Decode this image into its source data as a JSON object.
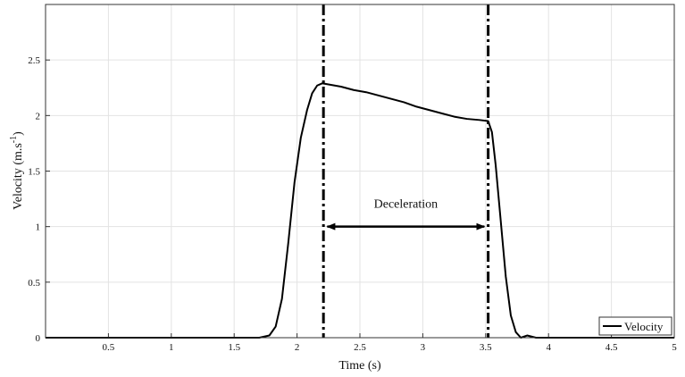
{
  "chart_data": {
    "type": "line",
    "xlabel": "Time (s)",
    "ylabel_main": "Velocity (m.s",
    "ylabel_sup": "-1",
    "ylabel_tail": ")",
    "xlim": [
      0,
      5
    ],
    "ylim": [
      0,
      3
    ],
    "x_ticks": [
      0.5,
      1,
      1.5,
      2,
      2.5,
      3,
      3.5,
      4,
      4.5,
      5
    ],
    "x_tick_labels": [
      "0.5",
      "1",
      "1.5",
      "2",
      "2.5",
      "3",
      "3.5",
      "4",
      "4.5",
      "5"
    ],
    "y_ticks": [
      0,
      0.5,
      1,
      1.5,
      2,
      2.5
    ],
    "y_tick_labels": [
      "0",
      "0.5",
      "1",
      "1.5",
      "2",
      "2.5"
    ],
    "grid": true,
    "legend": {
      "position": "bottom-right",
      "entries": [
        "Velocity"
      ]
    },
    "series": [
      {
        "name": "Velocity",
        "color": "#000000",
        "x": [
          0,
          0.5,
          1.0,
          1.5,
          1.7,
          1.78,
          1.83,
          1.88,
          1.93,
          1.98,
          2.03,
          2.08,
          2.12,
          2.16,
          2.2,
          2.25,
          2.35,
          2.45,
          2.55,
          2.65,
          2.75,
          2.85,
          2.95,
          3.05,
          3.15,
          3.25,
          3.35,
          3.45,
          3.52,
          3.55,
          3.58,
          3.62,
          3.66,
          3.7,
          3.74,
          3.78,
          3.83,
          3.9,
          4.0,
          4.5,
          5.0
        ],
        "y": [
          0,
          0,
          0,
          0,
          0.0,
          0.02,
          0.1,
          0.35,
          0.85,
          1.4,
          1.8,
          2.05,
          2.2,
          2.27,
          2.29,
          2.28,
          2.26,
          2.23,
          2.21,
          2.18,
          2.15,
          2.12,
          2.08,
          2.05,
          2.02,
          1.99,
          1.97,
          1.96,
          1.95,
          1.85,
          1.55,
          1.05,
          0.55,
          0.2,
          0.05,
          0.0,
          0.02,
          0.0,
          0.0,
          0.0,
          0.0
        ]
      }
    ],
    "vlines": [
      {
        "x": 2.21,
        "style": "dash-dot"
      },
      {
        "x": 3.52,
        "style": "dash-dot"
      }
    ],
    "annotations": [
      {
        "text": "Deceleration",
        "x": 2.865,
        "y": 1.17
      },
      {
        "type": "double-arrow",
        "x_start": 2.24,
        "x_end": 3.49,
        "y": 1.0
      }
    ]
  }
}
